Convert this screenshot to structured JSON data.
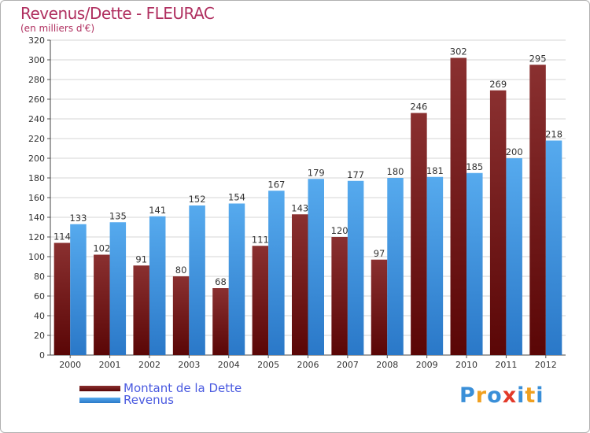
{
  "title": "Revenus/Dette - FLEURAC",
  "subtitle": "(en milliers d'€)",
  "logo": {
    "text": "Proxiti",
    "letters": [
      "P",
      "r",
      "o",
      "x",
      "i",
      "t",
      "i"
    ],
    "colors": [
      "#3a8fd8",
      "#f0a020",
      "#3a8fd8",
      "#e23a2a",
      "#3a8fd8",
      "#f0a020",
      "#3a8fd8"
    ]
  },
  "chart_data": {
    "type": "bar",
    "categories": [
      "2000",
      "2001",
      "2002",
      "2003",
      "2004",
      "2005",
      "2006",
      "2007",
      "2008",
      "2009",
      "2010",
      "2011",
      "2012"
    ],
    "series": [
      {
        "name": "Montant de la Dette",
        "values": [
          114,
          102,
          91,
          80,
          68,
          111,
          143,
          120,
          97,
          246,
          302,
          269,
          295
        ],
        "color": "#7a1e1e"
      },
      {
        "name": "Revenus",
        "values": [
          133,
          135,
          141,
          152,
          154,
          167,
          179,
          177,
          180,
          181,
          185,
          200,
          218
        ],
        "color": "#4aa0e8"
      }
    ],
    "ylim": [
      0,
      320
    ],
    "yticks": [
      0,
      20,
      40,
      60,
      80,
      100,
      120,
      140,
      160,
      180,
      200,
      220,
      240,
      260,
      280,
      300,
      320
    ],
    "grid": true,
    "legend_position": "bottom-left"
  }
}
